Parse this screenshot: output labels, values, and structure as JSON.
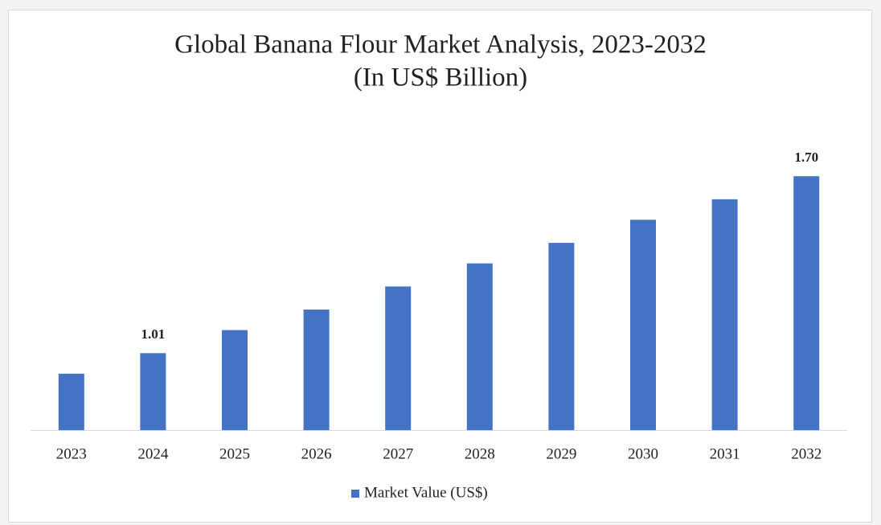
{
  "chart_data": {
    "type": "bar",
    "title": "Global Banana Flour Market Analysis, 2023-2032",
    "subtitle": "(In US$ Billion)",
    "categories": [
      "2023",
      "2024",
      "2025",
      "2026",
      "2027",
      "2028",
      "2029",
      "2030",
      "2031",
      "2032"
    ],
    "series": [
      {
        "name": "Market Value (US$)",
        "color": "#4472c4",
        "values": [
          0.93,
          1.01,
          1.1,
          1.18,
          1.27,
          1.36,
          1.44,
          1.53,
          1.61,
          1.7
        ],
        "value_labels": [
          null,
          "1.01",
          null,
          null,
          null,
          null,
          null,
          null,
          null,
          "1.70"
        ]
      }
    ],
    "ylim": [
      0.71,
      1.76
    ],
    "legend": "bottom"
  }
}
